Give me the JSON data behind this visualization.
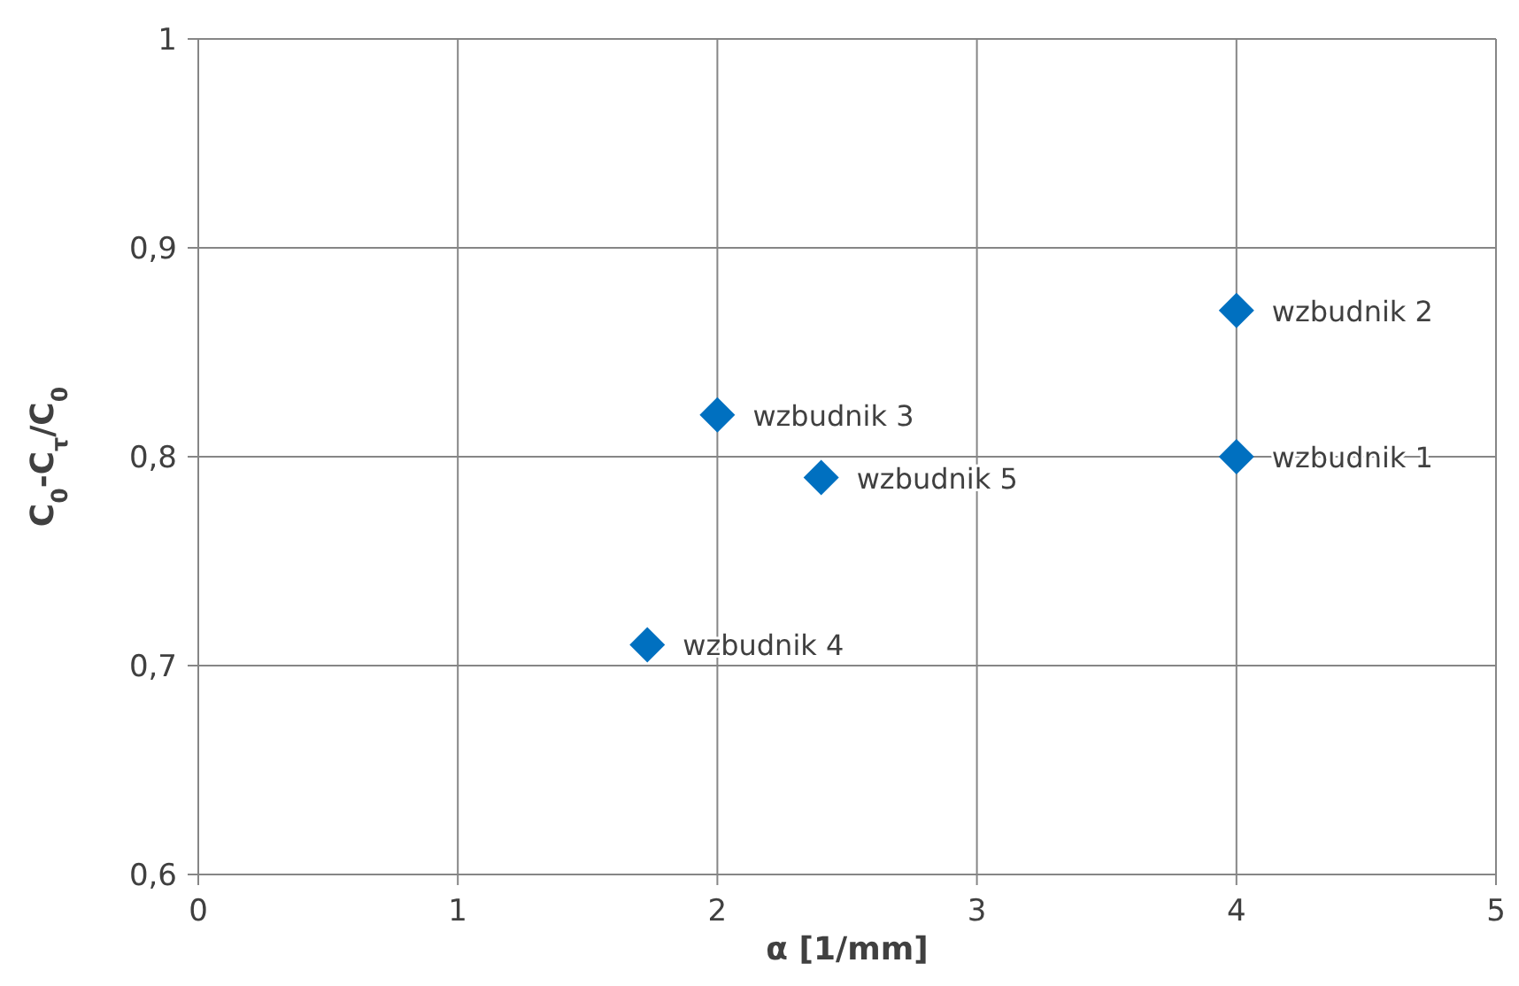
{
  "chart_data": {
    "type": "scatter",
    "xlabel": "α [1/mm]",
    "ylabel": "C$_{0}$-C$_{τ}$/C$_{0}$",
    "x": [
      4,
      4,
      2,
      2.4,
      1.73
    ],
    "series": [
      {
        "color": "#0070c0",
        "values": [
          0.8,
          0.87,
          0.82,
          0.79,
          0.71
        ]
      }
    ],
    "marker": "diamond",
    "grid": true,
    "xlim": [
      0,
      5
    ],
    "xticks": [
      0,
      1,
      2,
      3,
      4,
      5
    ],
    "ylim": [
      0.6,
      1
    ],
    "yticks": [
      {
        "value": 0.6,
        "label": "0,6"
      },
      {
        "value": 0.7,
        "label": "0,7"
      },
      {
        "value": 0.8,
        "label": "0,8"
      },
      {
        "value": 0.9,
        "label": "0,9"
      },
      {
        "value": 1,
        "label": "1"
      }
    ],
    "annotations": [
      {
        "text": "wzbudnik 1",
        "x": 4,
        "y": 0.8
      },
      {
        "text": "wzbudnik 2",
        "x": 4,
        "y": 0.87
      },
      {
        "text": "wzbudnik 3",
        "x": 2,
        "y": 0.82
      },
      {
        "text": "wzbudnik 5",
        "x": 2.4,
        "y": 0.79
      },
      {
        "text": "wzbudnik 4",
        "x": 1.73,
        "y": 0.71
      }
    ]
  }
}
